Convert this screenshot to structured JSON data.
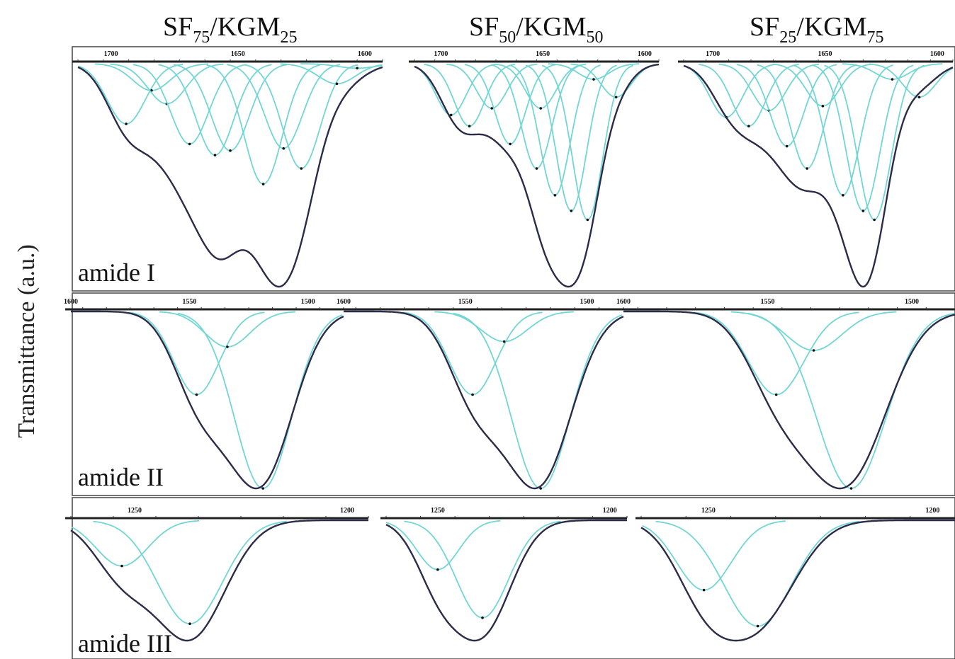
{
  "figure": {
    "ylabel": "Transmittance (a.u.)",
    "columns": [
      {
        "pre": "SF",
        "sub1": "75",
        "mid": "/KGM",
        "sub2": "25"
      },
      {
        "pre": "SF",
        "sub1": "50",
        "mid": "/KGM",
        "sub2": "50"
      },
      {
        "pre": "SF",
        "sub1": "25",
        "mid": "/KGM",
        "sub2": "75"
      }
    ],
    "rows": [
      {
        "label": "amide I"
      },
      {
        "label": "amide II"
      },
      {
        "label": "amide III"
      }
    ],
    "colors": {
      "envelope": "#2b2b4a",
      "component": "#72d6d4",
      "peak_marker": "#111111"
    }
  },
  "chart_data": [
    {
      "type": "line",
      "panel": "amide I",
      "xlabel": "",
      "ylabel": "Transmittance (a.u.)",
      "x_axis": "wavenumber",
      "xlim": [
        1713,
        1593
      ],
      "ylim": [
        0,
        1
      ],
      "tick_labels": [
        "1700",
        "1650",
        "1600"
      ],
      "tick_values": [
        1700,
        1650,
        1600
      ],
      "grid": false,
      "series": [
        {
          "sample": "SF75/KGM25",
          "components": [
            {
              "center": 1694,
              "depth": 0.27
            },
            {
              "center": 1684,
              "depth": 0.12
            },
            {
              "center": 1678,
              "depth": 0.18
            },
            {
              "center": 1669,
              "depth": 0.36
            },
            {
              "center": 1659,
              "depth": 0.41
            },
            {
              "center": 1653,
              "depth": 0.39
            },
            {
              "center": 1640,
              "depth": 0.54
            },
            {
              "center": 1632,
              "depth": 0.38
            },
            {
              "center": 1625,
              "depth": 0.47
            },
            {
              "center": 1611,
              "depth": 0.09
            },
            {
              "center": 1603,
              "depth": 0.02
            }
          ],
          "envelope_min": {
            "x": 1630,
            "depth": 1.0
          }
        },
        {
          "sample": "SF50/KGM50",
          "components": [
            {
              "center": 1695,
              "depth": 0.23
            },
            {
              "center": 1686,
              "depth": 0.28
            },
            {
              "center": 1675,
              "depth": 0.2
            },
            {
              "center": 1666,
              "depth": 0.36
            },
            {
              "center": 1653,
              "depth": 0.47
            },
            {
              "center": 1651,
              "depth": 0.2
            },
            {
              "center": 1644,
              "depth": 0.59
            },
            {
              "center": 1636,
              "depth": 0.66
            },
            {
              "center": 1628,
              "depth": 0.7
            },
            {
              "center": 1625,
              "depth": 0.07
            },
            {
              "center": 1614,
              "depth": 0.15
            }
          ],
          "envelope_min": {
            "x": 1627,
            "depth": 1.0
          }
        },
        {
          "sample": "SF25/KGM75",
          "components": [
            {
              "center": 1694,
              "depth": 0.24
            },
            {
              "center": 1684,
              "depth": 0.28
            },
            {
              "center": 1675,
              "depth": 0.21
            },
            {
              "center": 1667,
              "depth": 0.37
            },
            {
              "center": 1658,
              "depth": 0.47
            },
            {
              "center": 1651,
              "depth": 0.19
            },
            {
              "center": 1642,
              "depth": 0.59
            },
            {
              "center": 1633,
              "depth": 0.66
            },
            {
              "center": 1628,
              "depth": 0.7
            },
            {
              "center": 1620,
              "depth": 0.07
            },
            {
              "center": 1608,
              "depth": 0.15
            }
          ],
          "envelope_min": {
            "x": 1630,
            "depth": 1.0
          }
        }
      ]
    },
    {
      "type": "line",
      "panel": "amide II",
      "xlabel": "",
      "ylabel": "Transmittance (a.u.)",
      "x_axis": "wavenumber",
      "xlim": [
        1600,
        1485
      ],
      "ylim": [
        0,
        1
      ],
      "tick_labels": [
        "1600",
        "1550",
        "1500"
      ],
      "tick_values": [
        1600,
        1550,
        1500
      ],
      "grid": false,
      "series": [
        {
          "sample": "SF75/KGM25",
          "components": [
            {
              "center": 1547,
              "depth": 0.47
            },
            {
              "center": 1534,
              "depth": 0.2
            },
            {
              "center": 1519,
              "depth": 1.0
            }
          ],
          "envelope_min": {
            "x": 1519,
            "depth": 1.0
          }
        },
        {
          "sample": "SF50/KGM50",
          "components": [
            {
              "center": 1547,
              "depth": 0.47
            },
            {
              "center": 1534,
              "depth": 0.17
            },
            {
              "center": 1519,
              "depth": 1.0
            }
          ],
          "envelope_min": {
            "x": 1519,
            "depth": 1.0
          }
        },
        {
          "sample": "SF25/KGM75",
          "components": [
            {
              "center": 1547,
              "depth": 0.47
            },
            {
              "center": 1534,
              "depth": 0.22
            },
            {
              "center": 1521,
              "depth": 1.0
            }
          ],
          "envelope_min": {
            "x": 1521,
            "depth": 1.0
          }
        }
      ]
    },
    {
      "type": "line",
      "panel": "amide III",
      "xlabel": "",
      "ylabel": "Transmittance (a.u.)",
      "x_axis": "wavenumber",
      "xlim": [
        1265,
        1195
      ],
      "ylim": [
        0,
        1
      ],
      "tick_labels": [
        "1250",
        "1200"
      ],
      "tick_values": [
        1250,
        1200
      ],
      "grid": false,
      "series": [
        {
          "sample": "SF75/KGM25",
          "components": [
            {
              "center": 1253,
              "depth": 0.38
            },
            {
              "center": 1237,
              "depth": 0.86
            }
          ],
          "envelope_min": {
            "x": 1237,
            "depth": 1.0
          }
        },
        {
          "sample": "SF50/KGM50",
          "components": [
            {
              "center": 1250,
              "depth": 0.41
            },
            {
              "center": 1237,
              "depth": 0.81
            }
          ],
          "envelope_min": {
            "x": 1237,
            "depth": 1.0
          }
        },
        {
          "sample": "SF25/KGM75",
          "components": [
            {
              "center": 1251,
              "depth": 0.58
            },
            {
              "center": 1239,
              "depth": 0.88
            }
          ],
          "envelope_min": {
            "x": 1239,
            "depth": 1.0
          }
        }
      ]
    }
  ]
}
